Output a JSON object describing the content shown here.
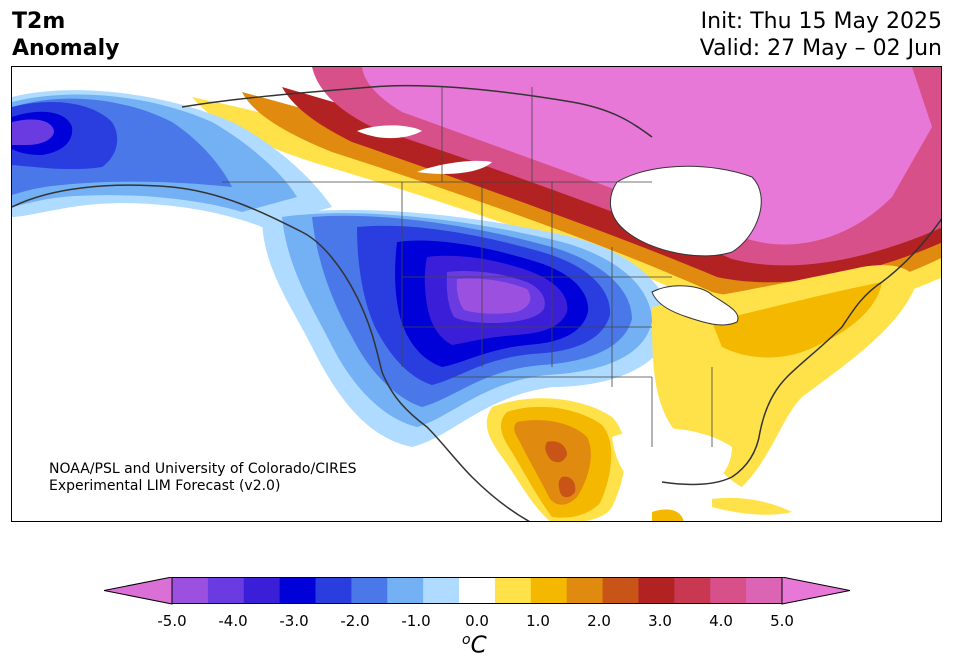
{
  "title": {
    "line1": "T2m",
    "line2": "Anomaly"
  },
  "dates": {
    "init": "Init: Thu 15 May 2025",
    "valid": "Valid: 27 May – 02 Jun"
  },
  "credit": {
    "line1": "NOAA/PSL and University of Colorado/CIRES",
    "line2": "Experimental LIM Forecast (v2.0)"
  },
  "colorbar": {
    "ticks": [
      "-5.0",
      "-4.0",
      "-3.0",
      "-2.0",
      "-1.0",
      "0.0",
      "1.0",
      "2.0",
      "3.0",
      "4.0",
      "5.0"
    ],
    "unit_base": "C",
    "unit_sup": "o",
    "levels": [
      -5.0,
      -4.5,
      -4.0,
      -3.5,
      -3.0,
      -2.5,
      -2.0,
      -1.5,
      -1.0,
      -0.5,
      0.5,
      1.0,
      1.5,
      2.0,
      2.5,
      3.0,
      3.5,
      4.0,
      4.5,
      5.0
    ],
    "colors": [
      "#da70d6",
      "#9b50e0",
      "#6a3be0",
      "#3a1ed8",
      "#0000d8",
      "#2a3ee0",
      "#4a78e8",
      "#74b0f4",
      "#aedbff",
      "#ffffff",
      "#ffe24a",
      "#f4b800",
      "#e08a10",
      "#c85418",
      "#b22222",
      "#c83850",
      "#d8508a",
      "#dc64b4",
      "#e878d8"
    ]
  },
  "map": {
    "region": "North America",
    "anomaly_features": [
      {
        "name": "cold-core-central-us",
        "value_c": -5.0
      },
      {
        "name": "warm-core-northern-canada",
        "value_c": 5.0
      },
      {
        "name": "warm-mexico",
        "value_c": 3.0
      },
      {
        "name": "warm-eastern-us",
        "value_c": 1.0
      }
    ]
  }
}
